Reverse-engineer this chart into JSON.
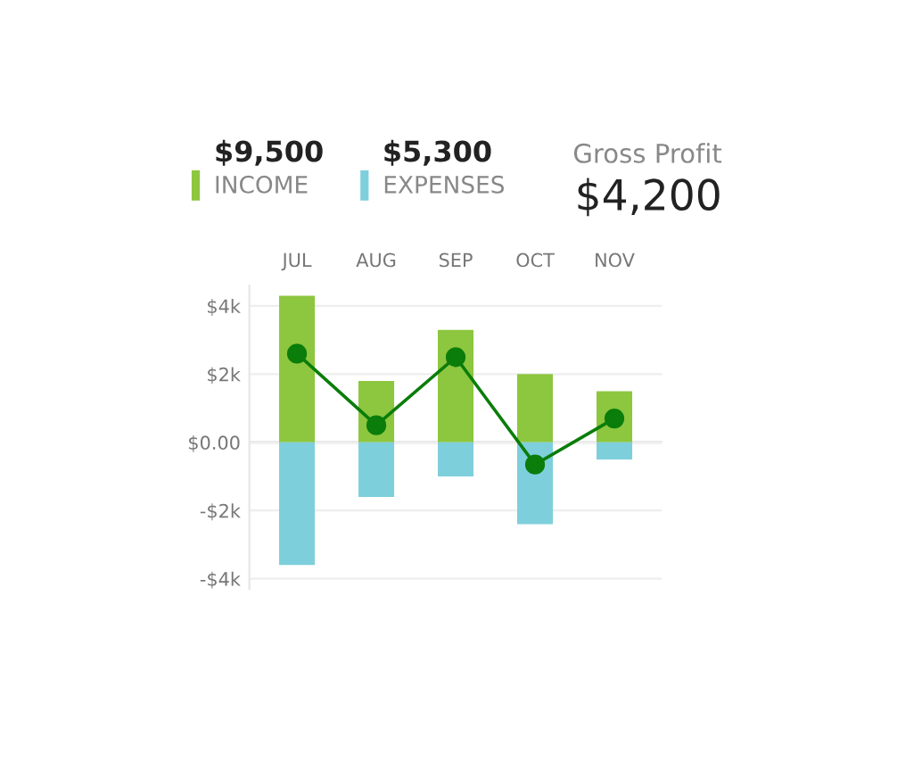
{
  "chart_data": {
    "type": "bar",
    "categories": [
      "JUL",
      "AUG",
      "SEP",
      "OCT",
      "NOV"
    ],
    "series": [
      {
        "name": "INCOME",
        "color": "#8dc63f",
        "values": [
          4.3,
          1.8,
          3.3,
          2.0,
          1.5
        ]
      },
      {
        "name": "EXPENSES",
        "color": "#7ecfdc",
        "values": [
          -3.6,
          -1.6,
          -1.0,
          -2.4,
          -0.5
        ]
      },
      {
        "type": "line",
        "color": "#0a7d0a",
        "values": [
          2.6,
          0.5,
          2.5,
          -0.65,
          0.7
        ]
      }
    ],
    "ylim": [
      -4.3,
      4.6
    ],
    "yticks": [
      {
        "value": -4,
        "label": "-$4k"
      },
      {
        "value": -2,
        "label": "-$2k"
      },
      {
        "value": 0,
        "label": "$0.00"
      },
      {
        "value": 2,
        "label": "$2k"
      },
      {
        "value": 4,
        "label": "$4k"
      }
    ],
    "grid": "y",
    "stacked": true,
    "marker": "circle",
    "legend": "top left",
    "annotations": [
      "$9,500",
      "$5,300",
      "Gross Profit",
      "$4,200"
    ]
  }
}
